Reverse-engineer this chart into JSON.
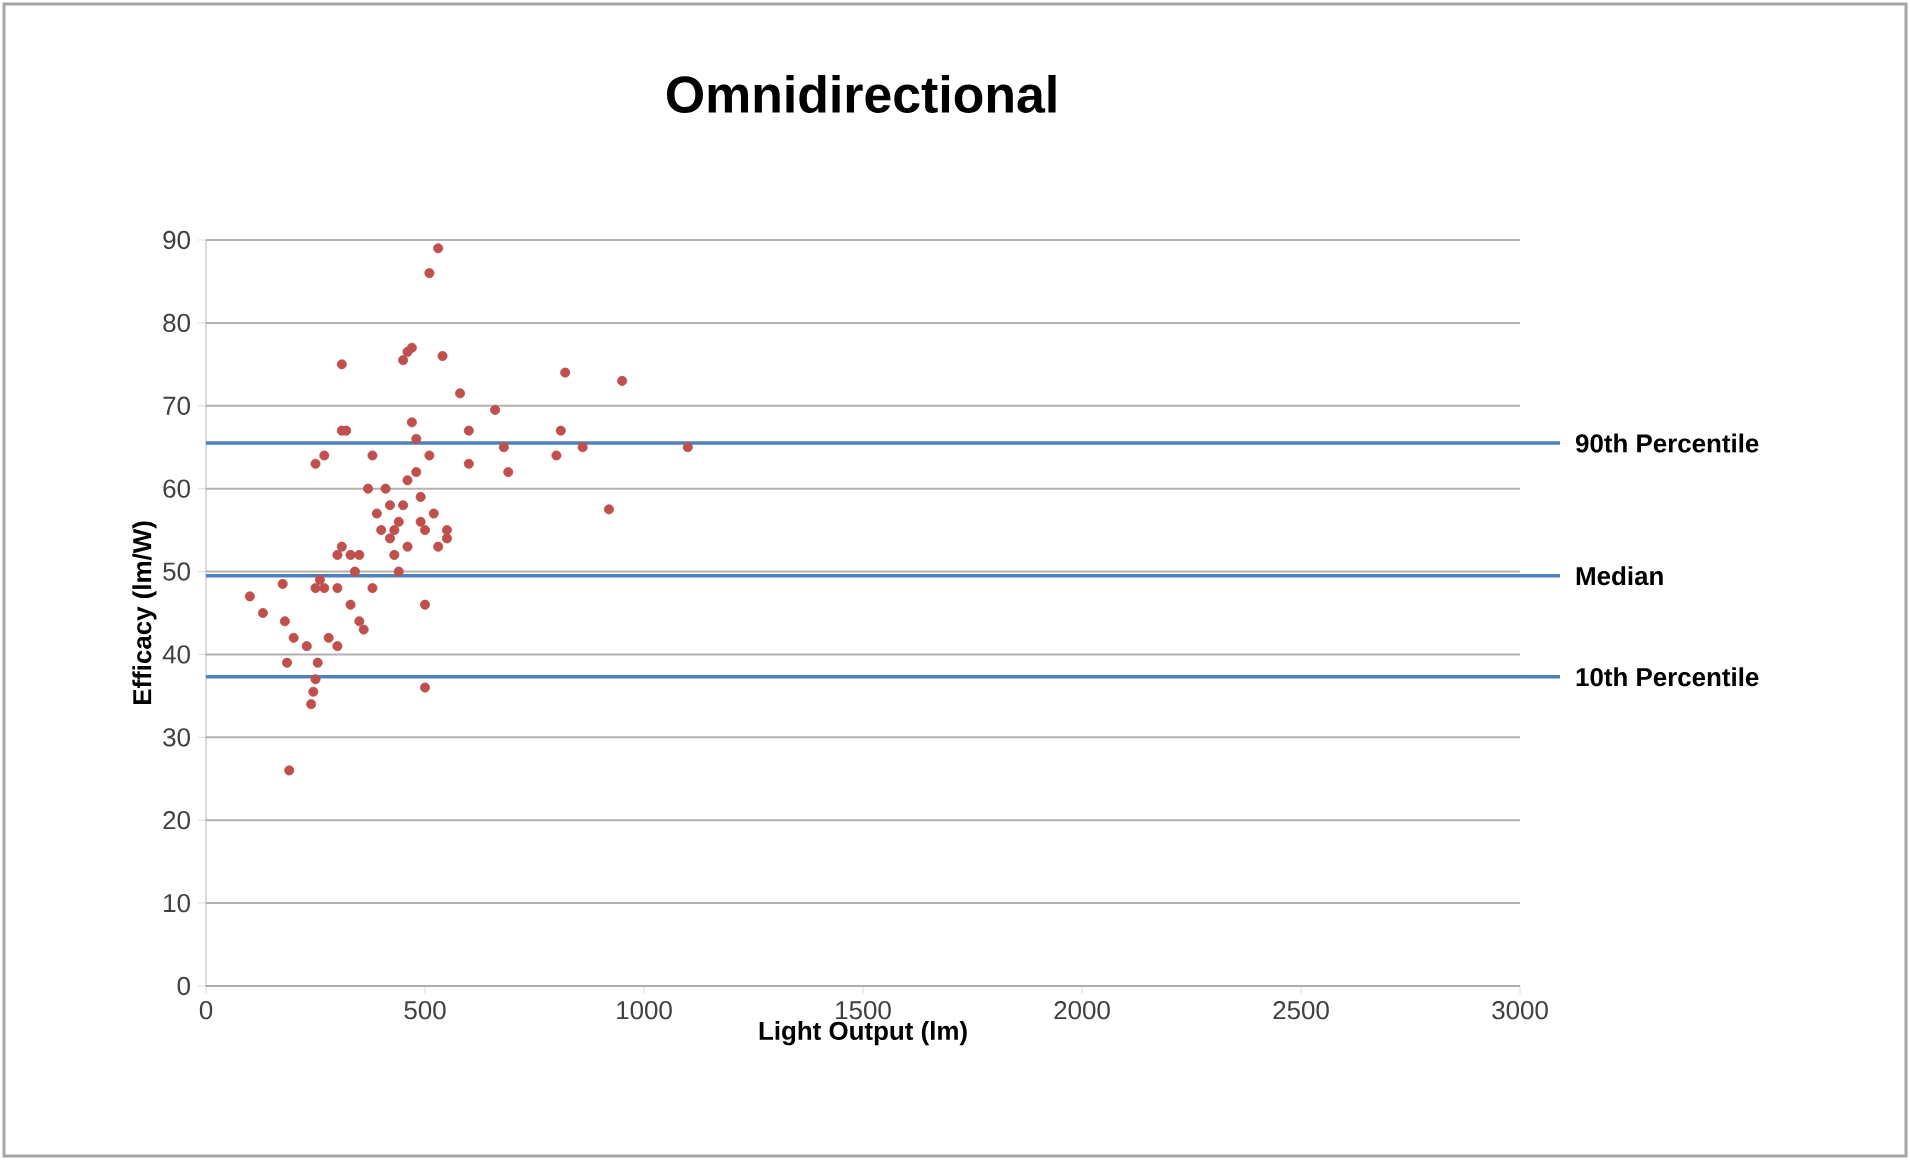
{
  "chart_data": {
    "type": "scatter",
    "title": "Omnidirectional",
    "xlabel": "Light Output (lm)",
    "ylabel": "Efficacy (lm/W)",
    "x": [
      100,
      130,
      175,
      180,
      185,
      190,
      200,
      230,
      240,
      245,
      250,
      255,
      250,
      260,
      270,
      280,
      300,
      300,
      250,
      270,
      310,
      310,
      320,
      300,
      310,
      330,
      340,
      350,
      360,
      350,
      370,
      380,
      390,
      400,
      410,
      420,
      430,
      440,
      440,
      450,
      460,
      450,
      460,
      470,
      470,
      480,
      480,
      490,
      490,
      500,
      500,
      500,
      510,
      510,
      530,
      520,
      530,
      540,
      550,
      550,
      580,
      600,
      600,
      660,
      680,
      690,
      800,
      810,
      820,
      860,
      920,
      950,
      1100,
      420,
      380,
      330,
      460,
      430
    ],
    "values": [
      47,
      45,
      48.5,
      44,
      39,
      26,
      42,
      41,
      34,
      35.5,
      37,
      39,
      48,
      49,
      48,
      42,
      41,
      48,
      63,
      64,
      75,
      67,
      67,
      52,
      53,
      52,
      50,
      44,
      43,
      52,
      60,
      64,
      57,
      55,
      60,
      54,
      52,
      56,
      50,
      58,
      61,
      75.5,
      76.5,
      77,
      68,
      66,
      62,
      56,
      59,
      55,
      46,
      36,
      64,
      86,
      89,
      57,
      53,
      76,
      55,
      54,
      71.5,
      63,
      67,
      69.5,
      65,
      62,
      64,
      67,
      74,
      65,
      57.5,
      73,
      65,
      58,
      48,
      46,
      53,
      55
    ],
    "color": "#c0504d",
    "marker": "circle",
    "xlim": [
      0,
      3000
    ],
    "xticks": [
      0,
      500,
      1000,
      1500,
      2000,
      2500,
      3000
    ],
    "ylim": [
      0,
      90
    ],
    "yticks": [
      0,
      10,
      20,
      30,
      40,
      50,
      60,
      70,
      80,
      90
    ],
    "grid": "y",
    "legend": false,
    "ref_lines": [
      {
        "axis": "y",
        "value": 65.5,
        "label": "90th Percentile",
        "color": "#4f81bd"
      },
      {
        "axis": "y",
        "value": 49.5,
        "label": "Median",
        "color": "#4f81bd"
      },
      {
        "axis": "y",
        "value": 37.3,
        "label": "10th Percentile",
        "color": "#4f81bd"
      }
    ]
  }
}
